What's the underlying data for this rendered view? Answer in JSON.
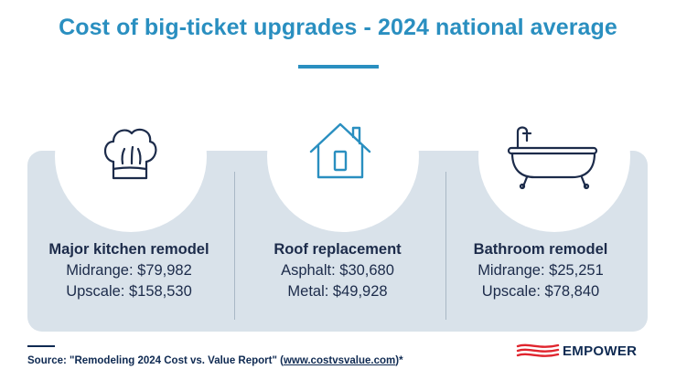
{
  "title": "Cost of big-ticket upgrades - 2024 national average",
  "cards": [
    {
      "icon": "chef-hat-icon",
      "title": "Major kitchen remodel",
      "lines": [
        "Midrange: $79,982",
        "Upscale: $158,530"
      ]
    },
    {
      "icon": "house-icon",
      "title": "Roof replacement",
      "lines": [
        "Asphalt: $30,680",
        "Metal: $49,928"
      ]
    },
    {
      "icon": "bathtub-icon",
      "title": "Bathroom remodel",
      "lines": [
        "Midrange: $25,251",
        "Upscale: $78,840"
      ]
    }
  ],
  "footer": {
    "source_prefix": "Source: \"Remodeling 2024 Cost vs. Value Report\" (",
    "source_link": "www.costvsvalue.com",
    "source_suffix": ")*"
  },
  "brand": {
    "name": "EMPOWER",
    "colors": {
      "primary": "#0f2a52",
      "accent": "#e0252e",
      "title": "#2a8fc0"
    }
  }
}
